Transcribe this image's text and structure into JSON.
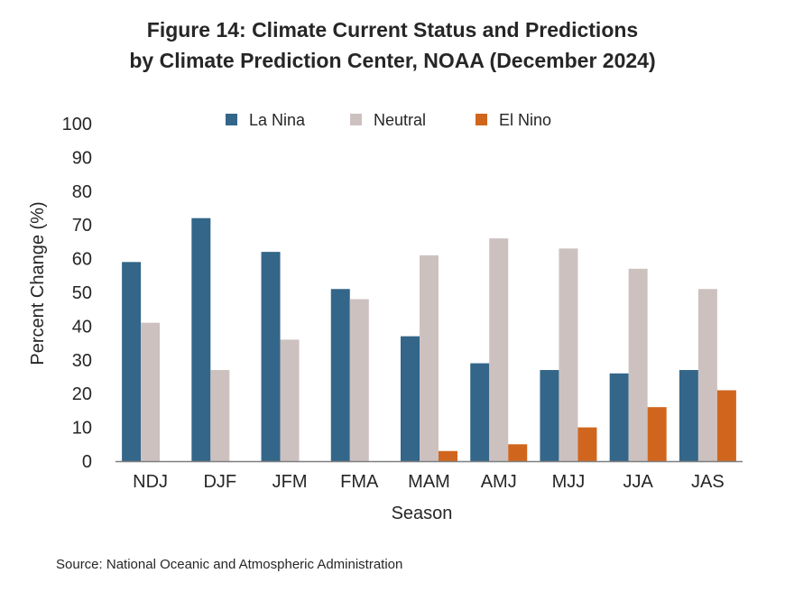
{
  "title": {
    "line1": "Figure 14: Climate Current Status and Predictions",
    "line2": "by Climate Prediction Center, NOAA (December 2024)"
  },
  "source": "Source: National Oceanic and Atmospheric Administration",
  "chart_data": {
    "type": "bar",
    "xlabel": "Season",
    "ylabel": "Percent Change (%)",
    "ylim": [
      0,
      100
    ],
    "yticks": [
      0,
      10,
      20,
      30,
      40,
      50,
      60,
      70,
      80,
      90,
      100
    ],
    "grid": false,
    "legend_position": "top",
    "categories": [
      "NDJ",
      "DJF",
      "JFM",
      "FMA",
      "MAM",
      "AMJ",
      "MJJ",
      "JJA",
      "JAS"
    ],
    "series": [
      {
        "name": "La Nina",
        "color": "#336689",
        "values": [
          59,
          72,
          62,
          51,
          37,
          29,
          27,
          26,
          27
        ]
      },
      {
        "name": "Neutral",
        "color": "#cdc1c0",
        "values": [
          41,
          27,
          36,
          48,
          61,
          66,
          63,
          57,
          51
        ]
      },
      {
        "name": "El Nino",
        "color": "#d0661d",
        "values": [
          0,
          0,
          0,
          0,
          3,
          5,
          10,
          16,
          21
        ]
      }
    ]
  }
}
